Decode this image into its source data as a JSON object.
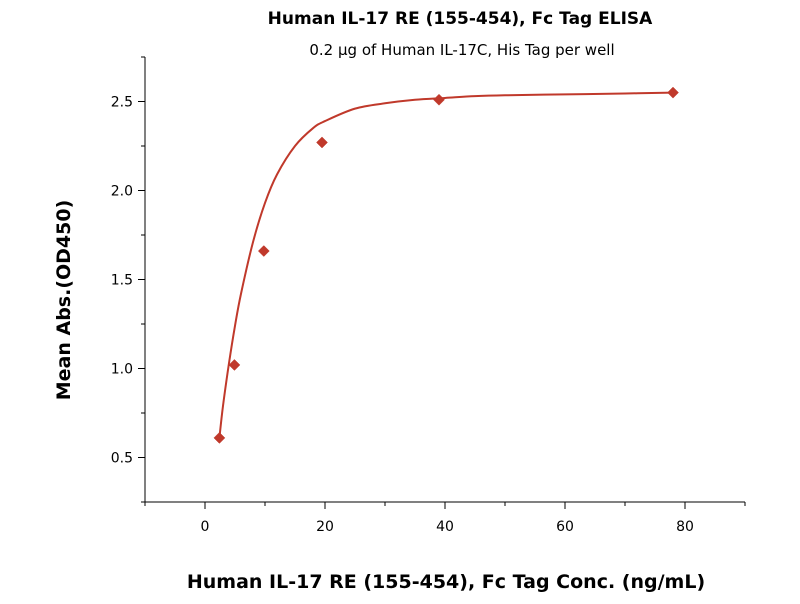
{
  "chart_data": {
    "type": "scatter",
    "title": "Human IL-17 RE (155-454), Fc Tag ELISA",
    "subtitle": "0.2 µg of Human IL-17C, His Tag per well",
    "xlabel": "Human IL-17 RE (155-454), Fc Tag Conc. (ng/mL)",
    "ylabel": "Mean Abs.(OD450)",
    "xlim": [
      -10,
      90
    ],
    "ylim": [
      0.25,
      2.75
    ],
    "xticks": [
      0,
      20,
      40,
      60,
      80
    ],
    "xtick_labels": [
      "0",
      "20",
      "40",
      "60",
      "80"
    ],
    "yticks": [
      0.5,
      1.0,
      1.5,
      2.0,
      2.5
    ],
    "ytick_labels": [
      "0.5",
      "1.0",
      "1.5",
      "2.0",
      "2.5"
    ],
    "grid": false,
    "legend": "none",
    "marker": "diamond",
    "color": "#C0392B",
    "x": [
      2.4,
      4.9,
      9.8,
      19.5,
      39,
      78
    ],
    "y": [
      0.61,
      1.02,
      1.66,
      2.27,
      2.51,
      2.55
    ],
    "fit_curve": {
      "type": "4PL fit",
      "x": [
        2.4,
        3,
        4,
        5,
        6,
        8,
        10,
        12,
        15,
        18,
        20,
        25,
        30,
        35,
        40,
        45,
        50,
        60,
        70,
        78
      ],
      "y": [
        0.61,
        0.79,
        1.03,
        1.24,
        1.42,
        1.71,
        1.93,
        2.09,
        2.25,
        2.35,
        2.39,
        2.46,
        2.49,
        2.51,
        2.52,
        2.53,
        2.535,
        2.54,
        2.545,
        2.55
      ]
    }
  }
}
